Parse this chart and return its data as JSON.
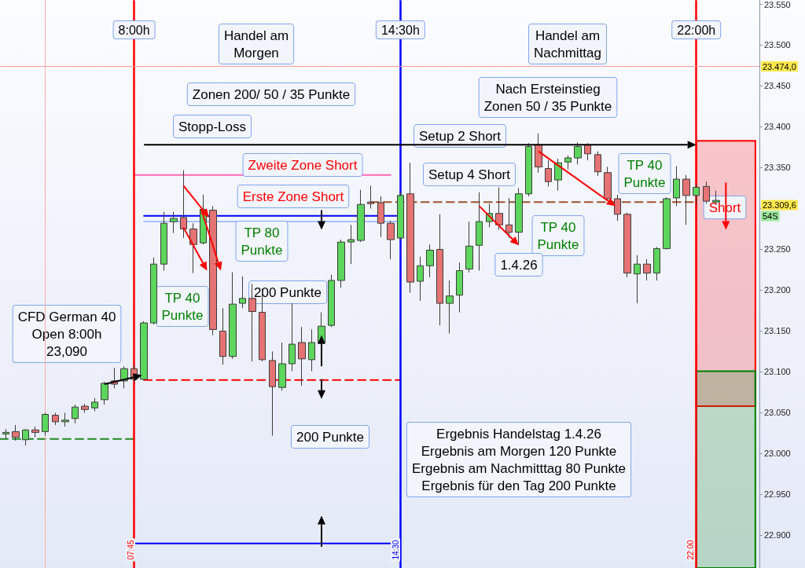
{
  "chart_data": {
    "type": "candlestick",
    "tick_labels": "y",
    "xlim": [
      4.35,
      23.6
    ],
    "ylim": [
      22.86,
      23.555
    ],
    "yticks": [
      {
        "value": 22.9,
        "label": "22.900"
      },
      {
        "value": 22.95,
        "label": "22.950"
      },
      {
        "value": 23.0,
        "label": "23.000"
      },
      {
        "value": 23.05,
        "label": "23.050"
      },
      {
        "value": 23.1,
        "label": "23.100"
      },
      {
        "value": 23.15,
        "label": "23.150"
      },
      {
        "value": 23.2,
        "label": "23.200"
      },
      {
        "value": 23.25,
        "label": "23.250"
      },
      {
        "value": 23.3,
        "label": null
      },
      {
        "value": 23.35,
        "label": "23.350"
      },
      {
        "value": 23.4,
        "label": "23.400"
      },
      {
        "value": 23.45,
        "label": "23.450"
      },
      {
        "value": 23.5,
        "label": "23.500"
      },
      {
        "value": 23.55,
        "label": "23.550"
      }
    ],
    "series": [
      {
        "type": "bar",
        "x": [
          22.75
        ],
        "base": [
          23.058
        ],
        "values": [
          0.325
        ],
        "color": "#ff0000"
      },
      {
        "type": "bar",
        "x": [
          22.75
        ],
        "base": [
          22.86
        ],
        "values": [
          0.241
        ],
        "color": "#008000"
      },
      {
        "type": "line",
        "x": [
          7.75,
          14.25
        ],
        "values": [
          23.341,
          23.341
        ],
        "color": "#ff69b4",
        "line_style": "solid"
      },
      {
        "type": "line",
        "x": [
          8,
          14.4
        ],
        "values": [
          23.291,
          23.291
        ],
        "color": "#0000ff",
        "line_style": "solid"
      },
      {
        "type": "line",
        "x": [
          8,
          14.4
        ],
        "values": [
          23.284,
          23.284
        ],
        "color": "#a8c0ff",
        "line_style": "solid"
      },
      {
        "type": "line",
        "x": [
          13.75,
          22
        ],
        "values": [
          23.308,
          23.308
        ],
        "color": "#a0522d",
        "line_style": "dashed"
      },
      {
        "type": "line",
        "x": [
          8,
          14.5
        ],
        "values": [
          23.09,
          23.09
        ],
        "color": "#ff0000",
        "line_style": "dashed"
      },
      {
        "type": "line",
        "x": [
          4.35,
          7.75
        ],
        "values": [
          23.018,
          23.018
        ],
        "color": "#228b22",
        "line_style": "dashed"
      },
      {
        "type": "line",
        "x": [
          7.75,
          14.25
        ],
        "values": [
          22.89,
          22.89
        ],
        "color": "#0000ff",
        "line_style": "solid"
      },
      {
        "x": [
          4.5,
          4.75,
          5,
          5.25,
          5.5,
          5.75,
          6,
          6.25,
          6.5,
          6.75,
          7,
          7.25,
          7.5,
          7.75,
          8,
          8.25,
          8.5,
          8.75,
          9,
          9.25,
          9.5,
          9.75,
          10,
          10.25,
          10.5,
          10.75,
          11,
          11.25,
          11.5,
          11.75,
          12,
          12.25,
          12.5,
          12.75,
          13,
          13.25,
          13.5,
          13.75,
          14,
          14.25,
          14.5,
          14.75,
          15,
          15.25,
          15.5,
          15.75,
          16,
          16.25,
          16.5,
          16.75,
          17,
          17.25,
          17.5,
          17.75,
          18,
          18.25,
          18.5,
          18.75,
          19,
          19.25,
          19.5,
          19.75,
          20,
          20.25,
          20.5,
          20.75,
          21,
          21.25,
          21.5,
          21.75,
          22,
          22.25,
          22.5
        ],
        "ohlc": [
          [
            23.024,
            23.03,
            23.018,
            23.026
          ],
          [
            23.027,
            23.035,
            23.016,
            23.02
          ],
          [
            23.017,
            23.03,
            23.01,
            23.029
          ],
          [
            23.029,
            23.033,
            23.02,
            23.026
          ],
          [
            23.027,
            23.05,
            23.022,
            23.048
          ],
          [
            23.047,
            23.05,
            23.035,
            23.039
          ],
          [
            23.039,
            23.05,
            23.033,
            23.041
          ],
          [
            23.043,
            23.06,
            23.037,
            23.057
          ],
          [
            23.058,
            23.061,
            23.05,
            23.054
          ],
          [
            23.056,
            23.068,
            23.052,
            23.063
          ],
          [
            23.066,
            23.088,
            23.06,
            23.086
          ],
          [
            23.089,
            23.105,
            23.08,
            23.085
          ],
          [
            23.089,
            23.107,
            23.08,
            23.104
          ],
          [
            23.104,
            23.108,
            23.088,
            23.091
          ],
          [
            23.091,
            23.162,
            23.09,
            23.16
          ],
          [
            23.16,
            23.24,
            23.158,
            23.232
          ],
          [
            23.232,
            23.296,
            23.224,
            23.282
          ],
          [
            23.284,
            23.296,
            23.27,
            23.288
          ],
          [
            23.289,
            23.347,
            23.264,
            23.275
          ],
          [
            23.275,
            23.282,
            23.221,
            23.256
          ],
          [
            23.258,
            23.317,
            23.256,
            23.299
          ],
          [
            23.298,
            23.303,
            23.145,
            23.152
          ],
          [
            23.15,
            23.178,
            23.109,
            23.119
          ],
          [
            23.119,
            23.222,
            23.116,
            23.183
          ],
          [
            23.184,
            23.217,
            23.178,
            23.19
          ],
          [
            23.19,
            23.208,
            23.113,
            23.174
          ],
          [
            23.173,
            23.202,
            23.113,
            23.115
          ],
          [
            23.114,
            23.125,
            23.022,
            23.082
          ],
          [
            23.081,
            23.136,
            23.077,
            23.11
          ],
          [
            23.11,
            23.184,
            23.101,
            23.134
          ],
          [
            23.136,
            23.155,
            23.083,
            23.116
          ],
          [
            23.115,
            23.152,
            23.101,
            23.136
          ],
          [
            23.136,
            23.173,
            23.124,
            23.156
          ],
          [
            23.157,
            23.219,
            23.155,
            23.212
          ],
          [
            23.212,
            23.262,
            23.203,
            23.259
          ],
          [
            23.259,
            23.28,
            23.232,
            23.262
          ],
          [
            23.261,
            23.323,
            23.259,
            23.305
          ],
          [
            23.308,
            23.328,
            23.3,
            23.306
          ],
          [
            23.307,
            23.315,
            23.265,
            23.282
          ],
          [
            23.282,
            23.285,
            23.238,
            23.262
          ],
          [
            23.264,
            23.32,
            23.261,
            23.316
          ],
          [
            23.318,
            23.356,
            23.197,
            23.21
          ],
          [
            23.211,
            23.241,
            23.187,
            23.23
          ],
          [
            23.23,
            23.256,
            23.216,
            23.249
          ],
          [
            23.25,
            23.293,
            23.157,
            23.184
          ],
          [
            23.184,
            23.212,
            23.147,
            23.193
          ],
          [
            23.194,
            23.234,
            23.173,
            23.224
          ],
          [
            23.226,
            23.284,
            23.222,
            23.254
          ],
          [
            23.255,
            23.32,
            23.224,
            23.284
          ],
          [
            23.284,
            23.306,
            23.277,
            23.294
          ],
          [
            23.294,
            23.326,
            23.274,
            23.28
          ],
          [
            23.28,
            23.313,
            23.264,
            23.271
          ],
          [
            23.271,
            23.325,
            23.256,
            23.318
          ],
          [
            23.318,
            23.38,
            23.315,
            23.376
          ],
          [
            23.378,
            23.392,
            23.344,
            23.351
          ],
          [
            23.349,
            23.359,
            23.327,
            23.333
          ],
          [
            23.335,
            23.361,
            23.322,
            23.356
          ],
          [
            23.357,
            23.365,
            23.348,
            23.362
          ],
          [
            23.362,
            23.381,
            23.354,
            23.376
          ],
          [
            23.378,
            23.38,
            23.359,
            23.367
          ],
          [
            23.366,
            23.37,
            23.34,
            23.345
          ],
          [
            23.344,
            23.351,
            23.31,
            23.312
          ],
          [
            23.312,
            23.317,
            23.285,
            23.293
          ],
          [
            23.293,
            23.295,
            23.216,
            23.221
          ],
          [
            23.22,
            23.243,
            23.184,
            23.232
          ],
          [
            23.232,
            23.238,
            23.212,
            23.221
          ],
          [
            23.221,
            23.253,
            23.212,
            23.251
          ],
          [
            23.251,
            23.314,
            23.25,
            23.312
          ],
          [
            23.313,
            23.352,
            23.303,
            23.336
          ],
          [
            23.336,
            23.341,
            23.28,
            23.316
          ],
          [
            23.316,
            23.33,
            23.305,
            23.326
          ],
          [
            23.327,
            23.333,
            23.306,
            23.309
          ],
          [
            23.308,
            23.322,
            23.306,
            23.31
          ]
        ],
        "colors": [
          "#5cd65c",
          "#e57373",
          "#5cd65c",
          "#e57373",
          "#5cd65c",
          "#e57373",
          "#5cd65c",
          "#5cd65c",
          "#e57373",
          "#5cd65c",
          "#5cd65c",
          "#e57373",
          "#5cd65c",
          "#e57373",
          "#5cd65c",
          "#5cd65c",
          "#5cd65c",
          "#5cd65c",
          "#e57373",
          "#e57373",
          "#5cd65c",
          "#e57373",
          "#e57373",
          "#5cd65c",
          "#5cd65c",
          "#e57373",
          "#e57373",
          "#e57373",
          "#5cd65c",
          "#5cd65c",
          "#e57373",
          "#5cd65c",
          "#5cd65c",
          "#5cd65c",
          "#5cd65c",
          "#5cd65c",
          "#5cd65c",
          "#e57373",
          "#e57373",
          "#e57373",
          "#5cd65c",
          "#e57373",
          "#5cd65c",
          "#5cd65c",
          "#e57373",
          "#5cd65c",
          "#5cd65c",
          "#5cd65c",
          "#5cd65c",
          "#5cd65c",
          "#e57373",
          "#e57373",
          "#5cd65c",
          "#5cd65c",
          "#e57373",
          "#e57373",
          "#5cd65c",
          "#5cd65c",
          "#5cd65c",
          "#e57373",
          "#e57373",
          "#e57373",
          "#e57373",
          "#e57373",
          "#5cd65c",
          "#e57373",
          "#5cd65c",
          "#5cd65c",
          "#5cd65c",
          "#e57373",
          "#5cd65c",
          "#e57373",
          "#5cd65c"
        ]
      }
    ],
    "ref_lines": [
      {
        "axis": "x",
        "value": 7.75,
        "label": "8:00h",
        "color": "#ff0000"
      },
      {
        "axis": "x",
        "value": 14.5,
        "label": "14:30h",
        "color": "#0000ff"
      },
      {
        "axis": "x",
        "value": 22,
        "label": "22:00h",
        "color": "#ff0000"
      },
      {
        "axis": "x",
        "value": 5.5,
        "label": null,
        "color": "#ffaaaa"
      },
      {
        "axis": "y",
        "value": 23.474,
        "label": "23.474,0",
        "color": "#ff9999"
      }
    ],
    "annotations": [
      "Handel am\nMorgen",
      "Zonen 200/ 50 / 35 Punkte",
      "Stopp-Loss",
      "Zweite Zone Short",
      "Erste Zone Short",
      "TP 80\nPunkte",
      "TP 40\nPunkte",
      "CFD German 40\nOpen 8:00h\n23,090",
      "200 Punkte",
      "200 Punkte",
      "Handel am\nNachmittag",
      "Nach Ersteinstieg\nZonen 50 / 35 Punkte",
      "Setup 2 Short",
      "Setup 4 Short",
      "TP 40\nPunkte",
      "1.4.26",
      "TP 40\nPunkte",
      "Short",
      "Ergebnis Handelstag 1.4.26\nErgebnis am Morgen 120 Punkte\nErgebnis am Nachmitttag 80 Punkte\nErgebnis für den Tag 200 Punkte",
      "07:45",
      "14:30",
      "22:00",
      "23.309,6",
      "54S"
    ]
  }
}
